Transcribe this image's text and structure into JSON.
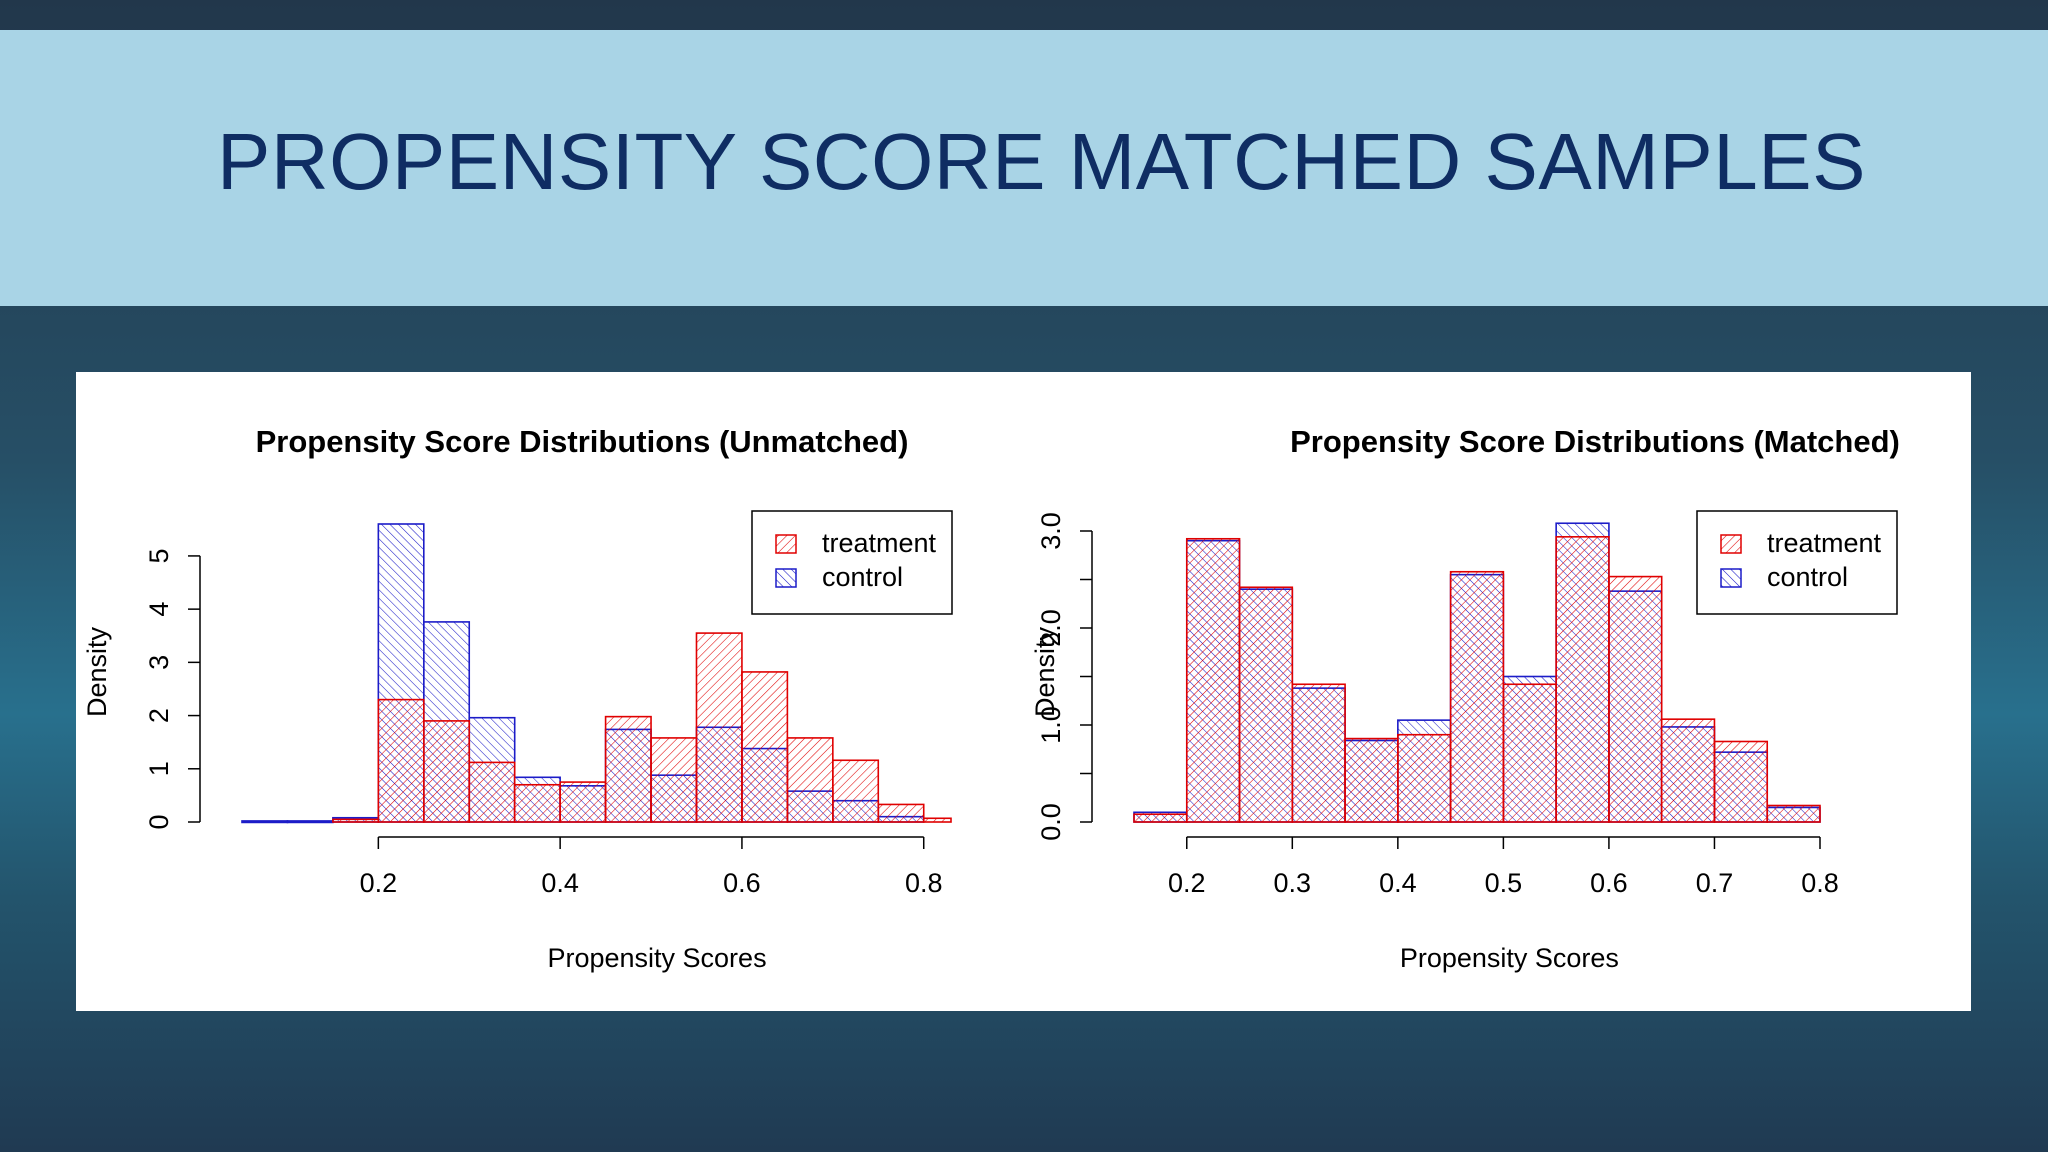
{
  "slide": {
    "title": "PROPENSITY SCORE MATCHED SAMPLES"
  },
  "colors": {
    "treatment": "#e00000",
    "control": "#1c1cc8",
    "title_band": "#a9d4e6",
    "title_text": "#0f2d63"
  },
  "chart_data": [
    {
      "type": "bar",
      "subtype": "overlaid-histogram",
      "title": "Propensity Score Distributions (Unmatched)",
      "xlabel": "Propensity Scores",
      "ylabel": "Density",
      "xlim": [
        0.05,
        0.83
      ],
      "ylim": [
        0,
        5.6
      ],
      "xticks": [
        0.2,
        0.4,
        0.6,
        0.8
      ],
      "xtick_labels": [
        "0.2",
        "0.4",
        "0.6",
        "0.8"
      ],
      "yticks": [
        0,
        1,
        2,
        3,
        4,
        5
      ],
      "ytick_labels": [
        "0",
        "1",
        "2",
        "3",
        "4",
        "5"
      ],
      "legend": {
        "position": "top-right",
        "entries": [
          "treatment",
          "control"
        ]
      },
      "bin_edges": [
        0.05,
        0.1,
        0.15,
        0.2,
        0.25,
        0.3,
        0.35,
        0.4,
        0.45,
        0.5,
        0.55,
        0.6,
        0.65,
        0.7,
        0.75,
        0.8,
        0.83
      ],
      "series": [
        {
          "name": "treatment",
          "values": [
            0,
            0,
            0.05,
            2.3,
            1.9,
            1.12,
            0.7,
            0.75,
            1.98,
            1.58,
            3.55,
            2.82,
            1.58,
            1.16,
            0.33,
            0.07
          ]
        },
        {
          "name": "control",
          "values": [
            0.02,
            0.02,
            0.08,
            5.6,
            3.76,
            1.96,
            0.84,
            0.68,
            1.74,
            0.88,
            1.78,
            1.38,
            0.58,
            0.4,
            0.1,
            0
          ]
        }
      ]
    },
    {
      "type": "bar",
      "subtype": "overlaid-histogram",
      "title": "Propensity Score Distributions (Matched)",
      "xlabel": "Propensity Scores",
      "ylabel": "Density",
      "xlim": [
        0.15,
        0.8
      ],
      "ylim": [
        0,
        3.0
      ],
      "xticks": [
        0.2,
        0.3,
        0.4,
        0.5,
        0.6,
        0.7,
        0.8
      ],
      "xtick_labels": [
        "0.2",
        "0.3",
        "0.4",
        "0.5",
        "0.6",
        "0.7",
        "0.8"
      ],
      "yticks": [
        0,
        0.5,
        1.0,
        1.5,
        2.0,
        2.5,
        3.0
      ],
      "ytick_labels": [
        "0.0",
        "",
        "1.0",
        "",
        "2.0",
        "",
        "3.0"
      ],
      "legend": {
        "position": "top-right",
        "entries": [
          "treatment",
          "control"
        ]
      },
      "bin_edges": [
        0.15,
        0.2,
        0.25,
        0.3,
        0.35,
        0.4,
        0.45,
        0.5,
        0.55,
        0.6,
        0.65,
        0.7,
        0.75,
        0.8
      ],
      "series": [
        {
          "name": "treatment",
          "values": [
            0.08,
            2.92,
            2.42,
            1.42,
            0.86,
            0.9,
            2.58,
            1.42,
            2.94,
            2.53,
            1.06,
            0.83,
            0.17
          ]
        },
        {
          "name": "control",
          "values": [
            0.1,
            2.9,
            2.4,
            1.38,
            0.84,
            1.05,
            2.55,
            1.5,
            3.08,
            2.38,
            0.98,
            0.72,
            0.15
          ]
        }
      ]
    }
  ]
}
